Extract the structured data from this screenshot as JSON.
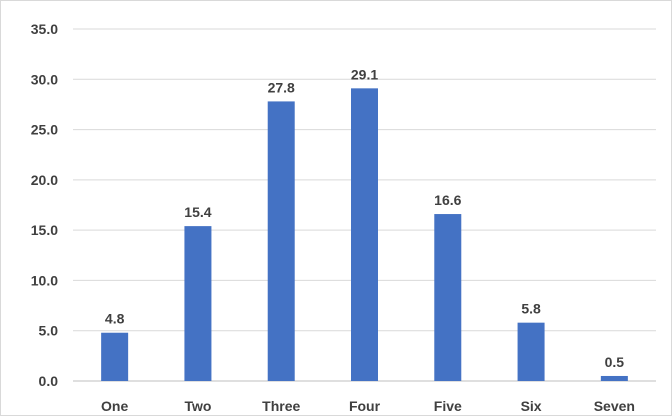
{
  "chart_data": {
    "type": "bar",
    "categories": [
      "One",
      "Two",
      "Three",
      "Four",
      "Five",
      "Six",
      "Seven"
    ],
    "values": [
      4.8,
      15.4,
      27.8,
      29.1,
      16.6,
      5.8,
      0.5
    ],
    "value_labels": [
      "4.8",
      "15.4",
      "27.8",
      "29.1",
      "16.6",
      "5.8",
      "0.5"
    ],
    "y_ticks": [
      "0.0",
      "5.0",
      "10.0",
      "15.0",
      "20.0",
      "25.0",
      "30.0",
      "35.0"
    ],
    "ylim": [
      0,
      35
    ],
    "title": "",
    "xlabel": "",
    "ylabel": "",
    "grid": true,
    "legend": "none",
    "bar_color": "#4472c4"
  }
}
